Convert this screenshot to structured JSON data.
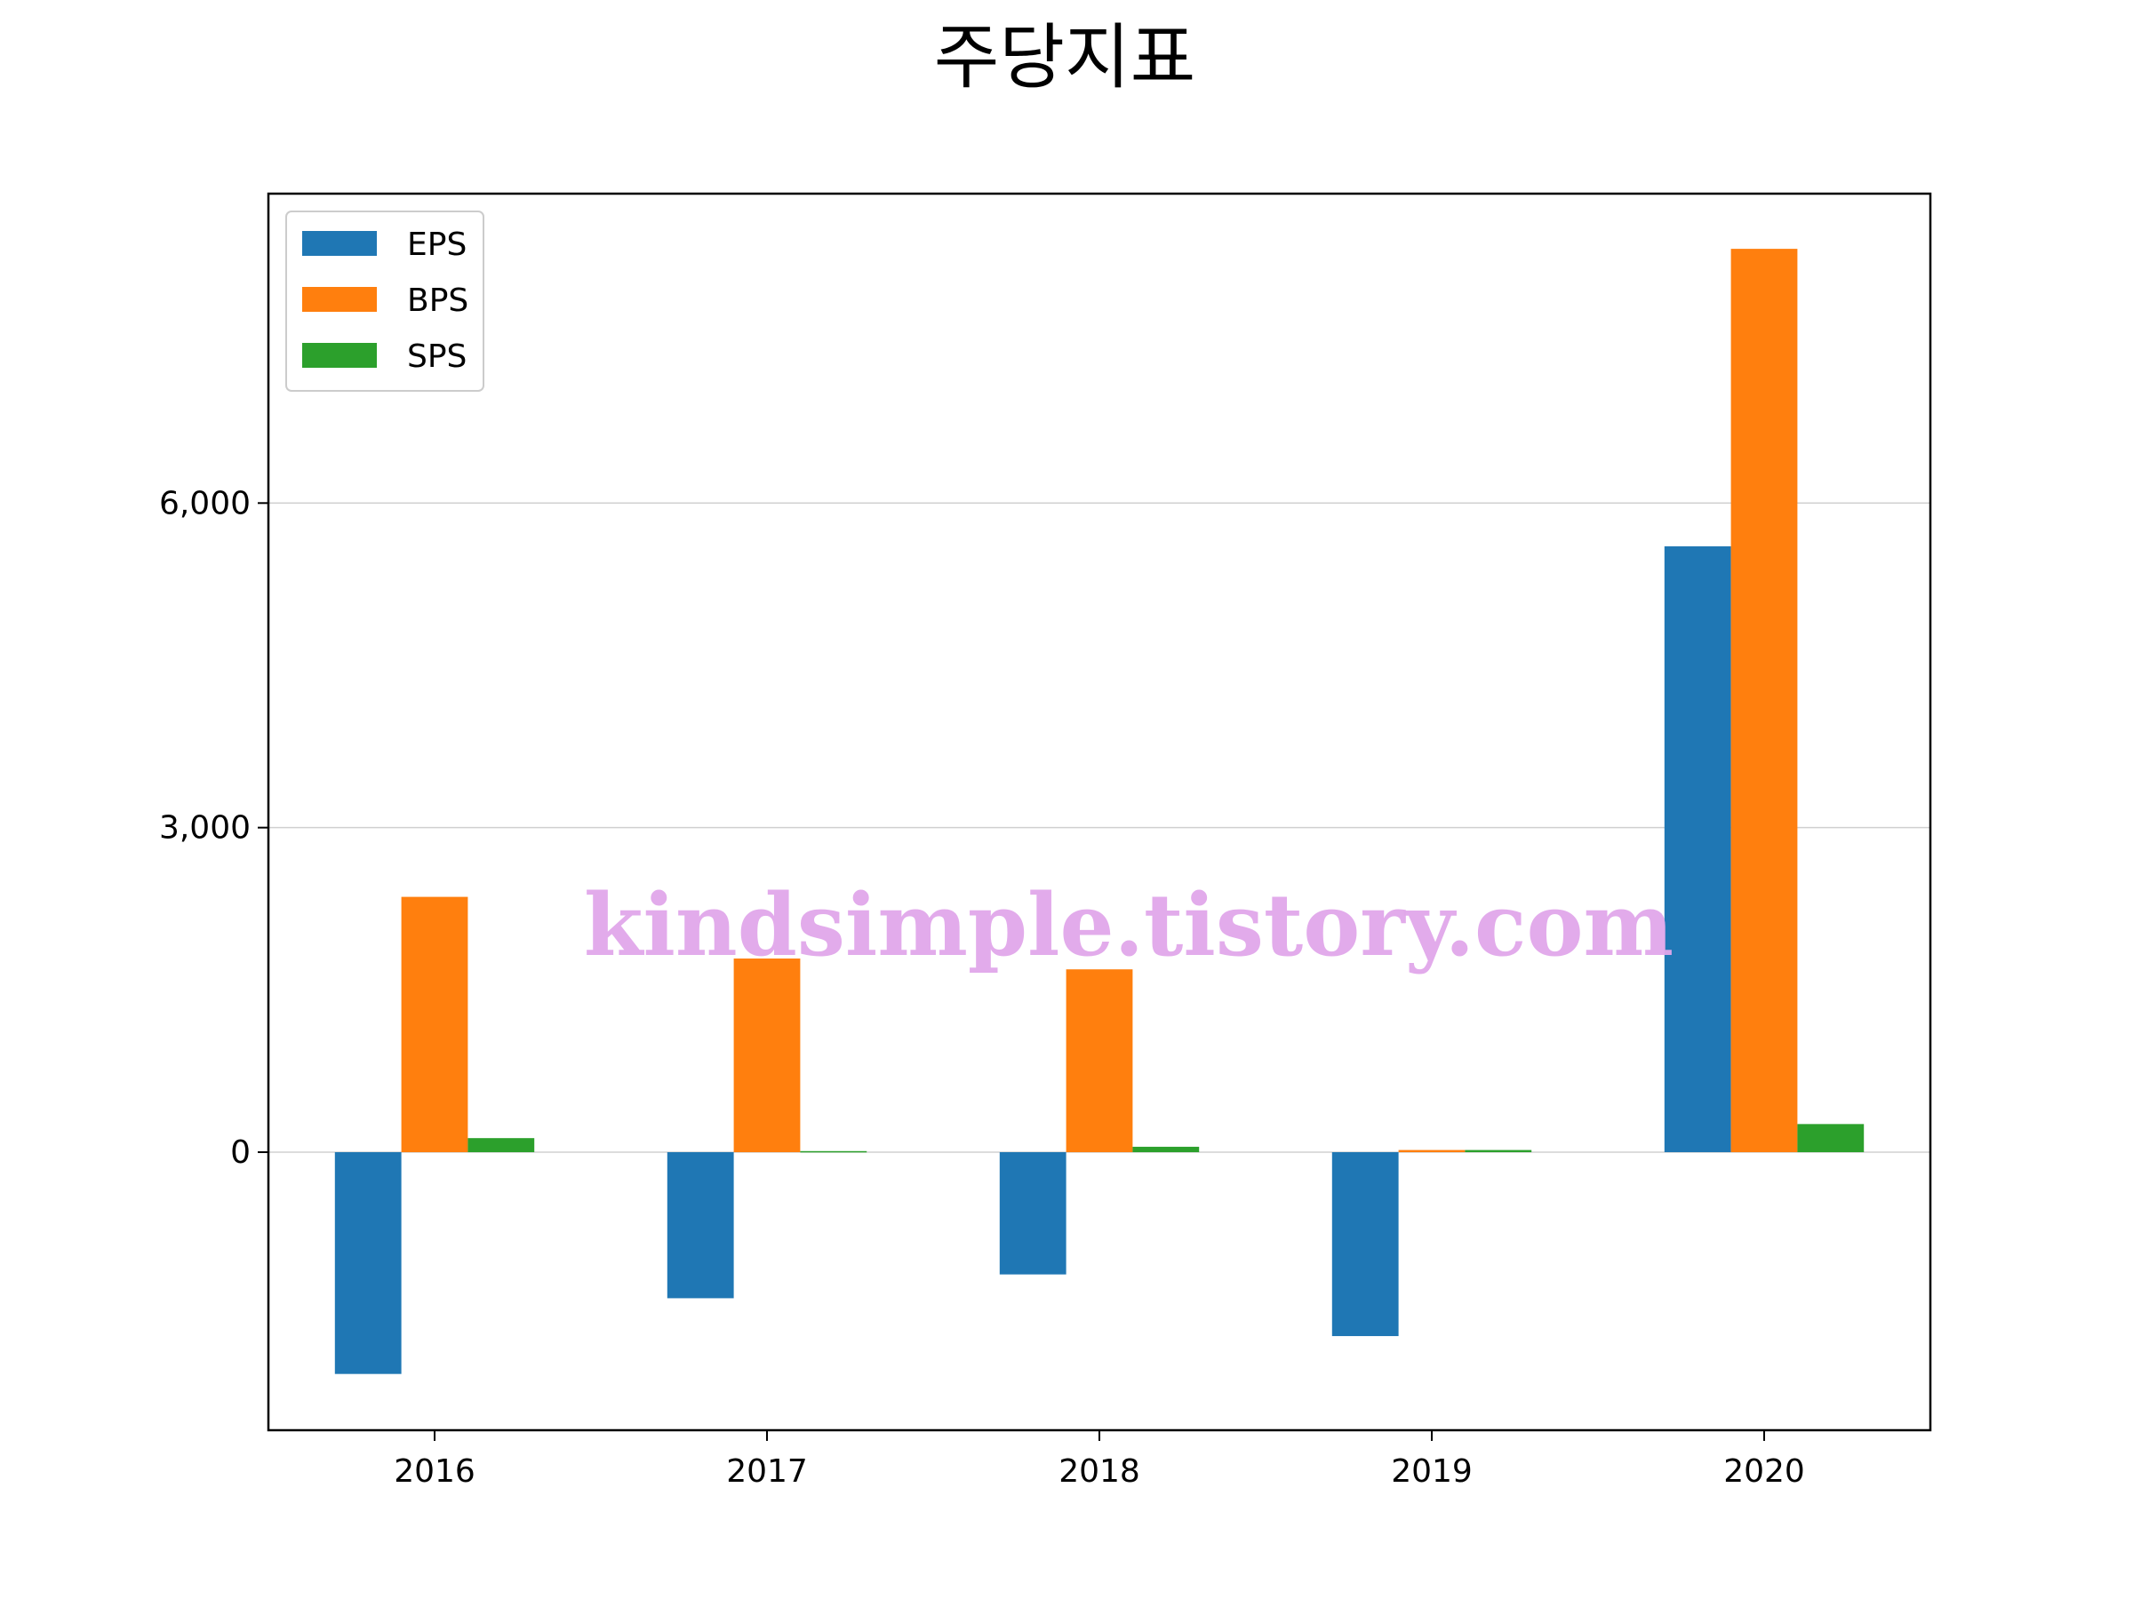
{
  "chart_data": {
    "type": "bar",
    "title": "주당지표",
    "xlabel": "",
    "ylabel": "",
    "categories": [
      "2016",
      "2017",
      "2018",
      "2019",
      "2020"
    ],
    "series": [
      {
        "name": "EPS",
        "color": "#1f77b4",
        "values": [
          -2050,
          -1350,
          -1130,
          -1700,
          5600
        ]
      },
      {
        "name": "BPS",
        "color": "#ff7f0e",
        "values": [
          2360,
          1790,
          1690,
          20,
          8350
        ]
      },
      {
        "name": "SPS",
        "color": "#2ca02c",
        "values": [
          130,
          10,
          50,
          20,
          260
        ]
      }
    ],
    "yticks": [
      0,
      3000,
      6000
    ],
    "ytick_labels": [
      "0",
      "3,000",
      "6,000"
    ],
    "ylim": [
      -2570,
      8860
    ],
    "grid": "horizontal",
    "legend_position": "upper-left"
  },
  "watermark": "kindsimple.tistory.com"
}
